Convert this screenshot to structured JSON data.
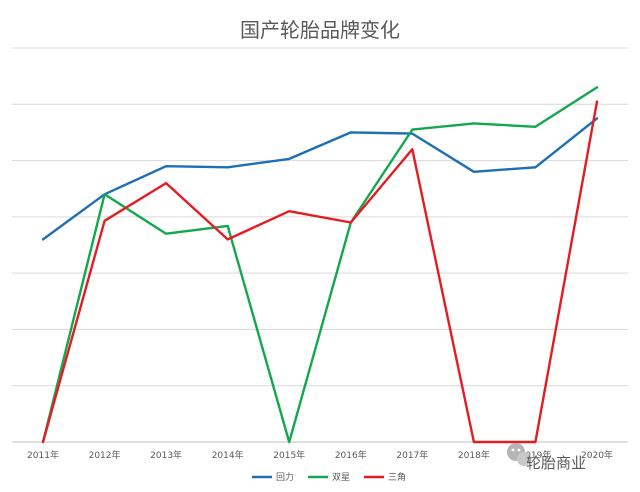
{
  "chart_data": {
    "type": "line",
    "title": "国产轮胎品牌变化",
    "xlabel": "",
    "ylabel": "",
    "categories": [
      "2011年",
      "2012年",
      "2013年",
      "2014年",
      "2015年",
      "2016年",
      "2017年",
      "2018年",
      "2019年",
      "2020年"
    ],
    "ylim": [
      0,
      7
    ],
    "grid": true,
    "legend_position": "bottom",
    "series": [
      {
        "name": "回力",
        "color": "#1f6fb5",
        "values": [
          3.6,
          4.4,
          4.9,
          4.88,
          5.03,
          5.5,
          5.48,
          4.8,
          4.88,
          5.75
        ]
      },
      {
        "name": "双星",
        "color": "#13a84d",
        "values": [
          0,
          4.4,
          3.7,
          3.84,
          0,
          3.9,
          5.55,
          5.66,
          5.6,
          6.3
        ]
      },
      {
        "name": "三角",
        "color": "#e31d23",
        "values": [
          0,
          3.93,
          4.6,
          3.6,
          4.1,
          3.9,
          5.2,
          0,
          0,
          6.05
        ]
      }
    ]
  },
  "watermark": {
    "icon": "wechat-icon",
    "text": "轮胎商业"
  }
}
